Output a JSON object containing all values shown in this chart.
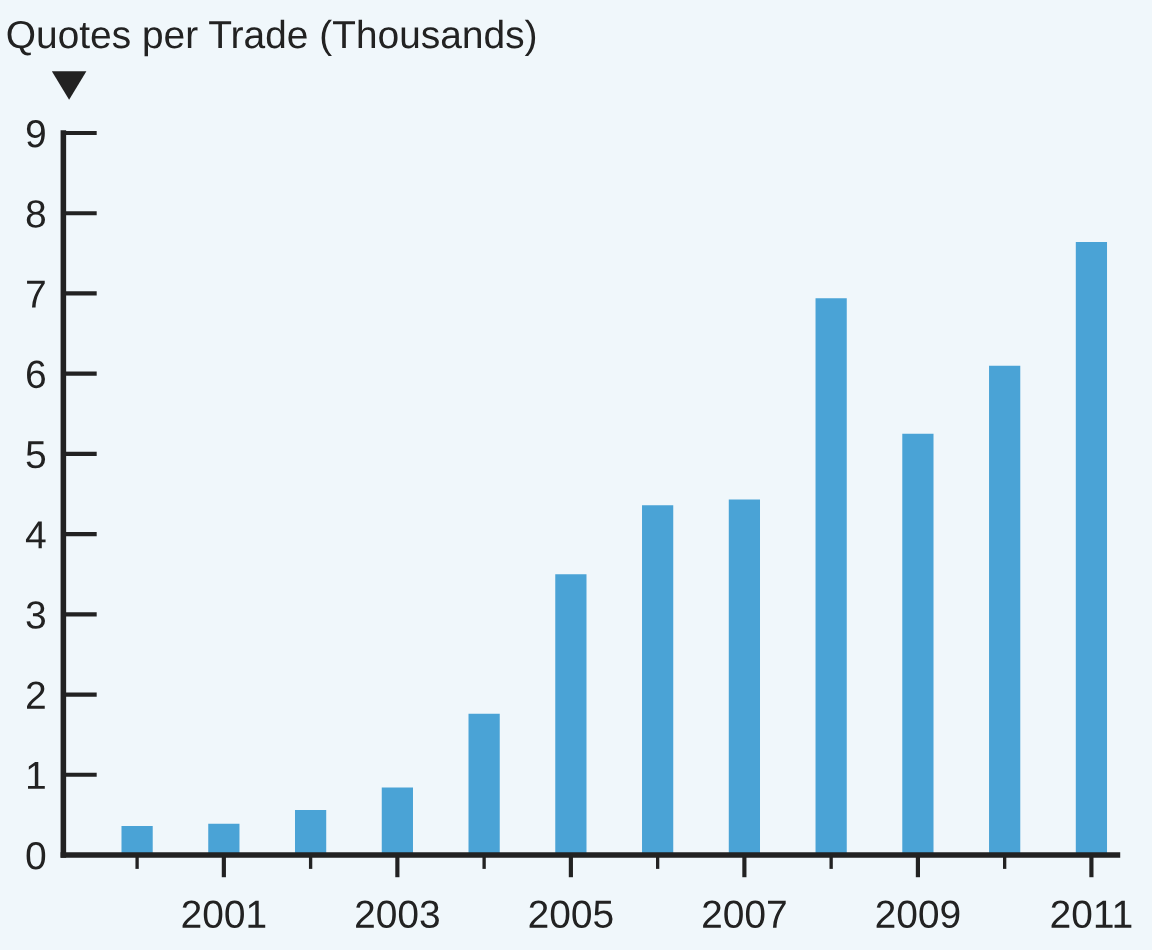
{
  "chart_data": {
    "type": "bar",
    "ylabel": "Quotes per Trade (Thousands)",
    "categories": [
      null,
      "2001",
      null,
      "2003",
      null,
      "2005",
      null,
      "2007",
      null,
      "2009",
      null,
      "2011"
    ],
    "values": [
      0.36,
      0.39,
      0.56,
      0.84,
      1.76,
      3.5,
      4.36,
      4.43,
      6.94,
      5.25,
      6.1,
      7.64
    ],
    "color": "#4aa3d6",
    "ylim": [
      0,
      9
    ],
    "yticks": [
      0,
      1,
      2,
      3,
      4,
      5,
      6,
      7,
      8,
      9
    ],
    "grid": false,
    "legend": false
  }
}
